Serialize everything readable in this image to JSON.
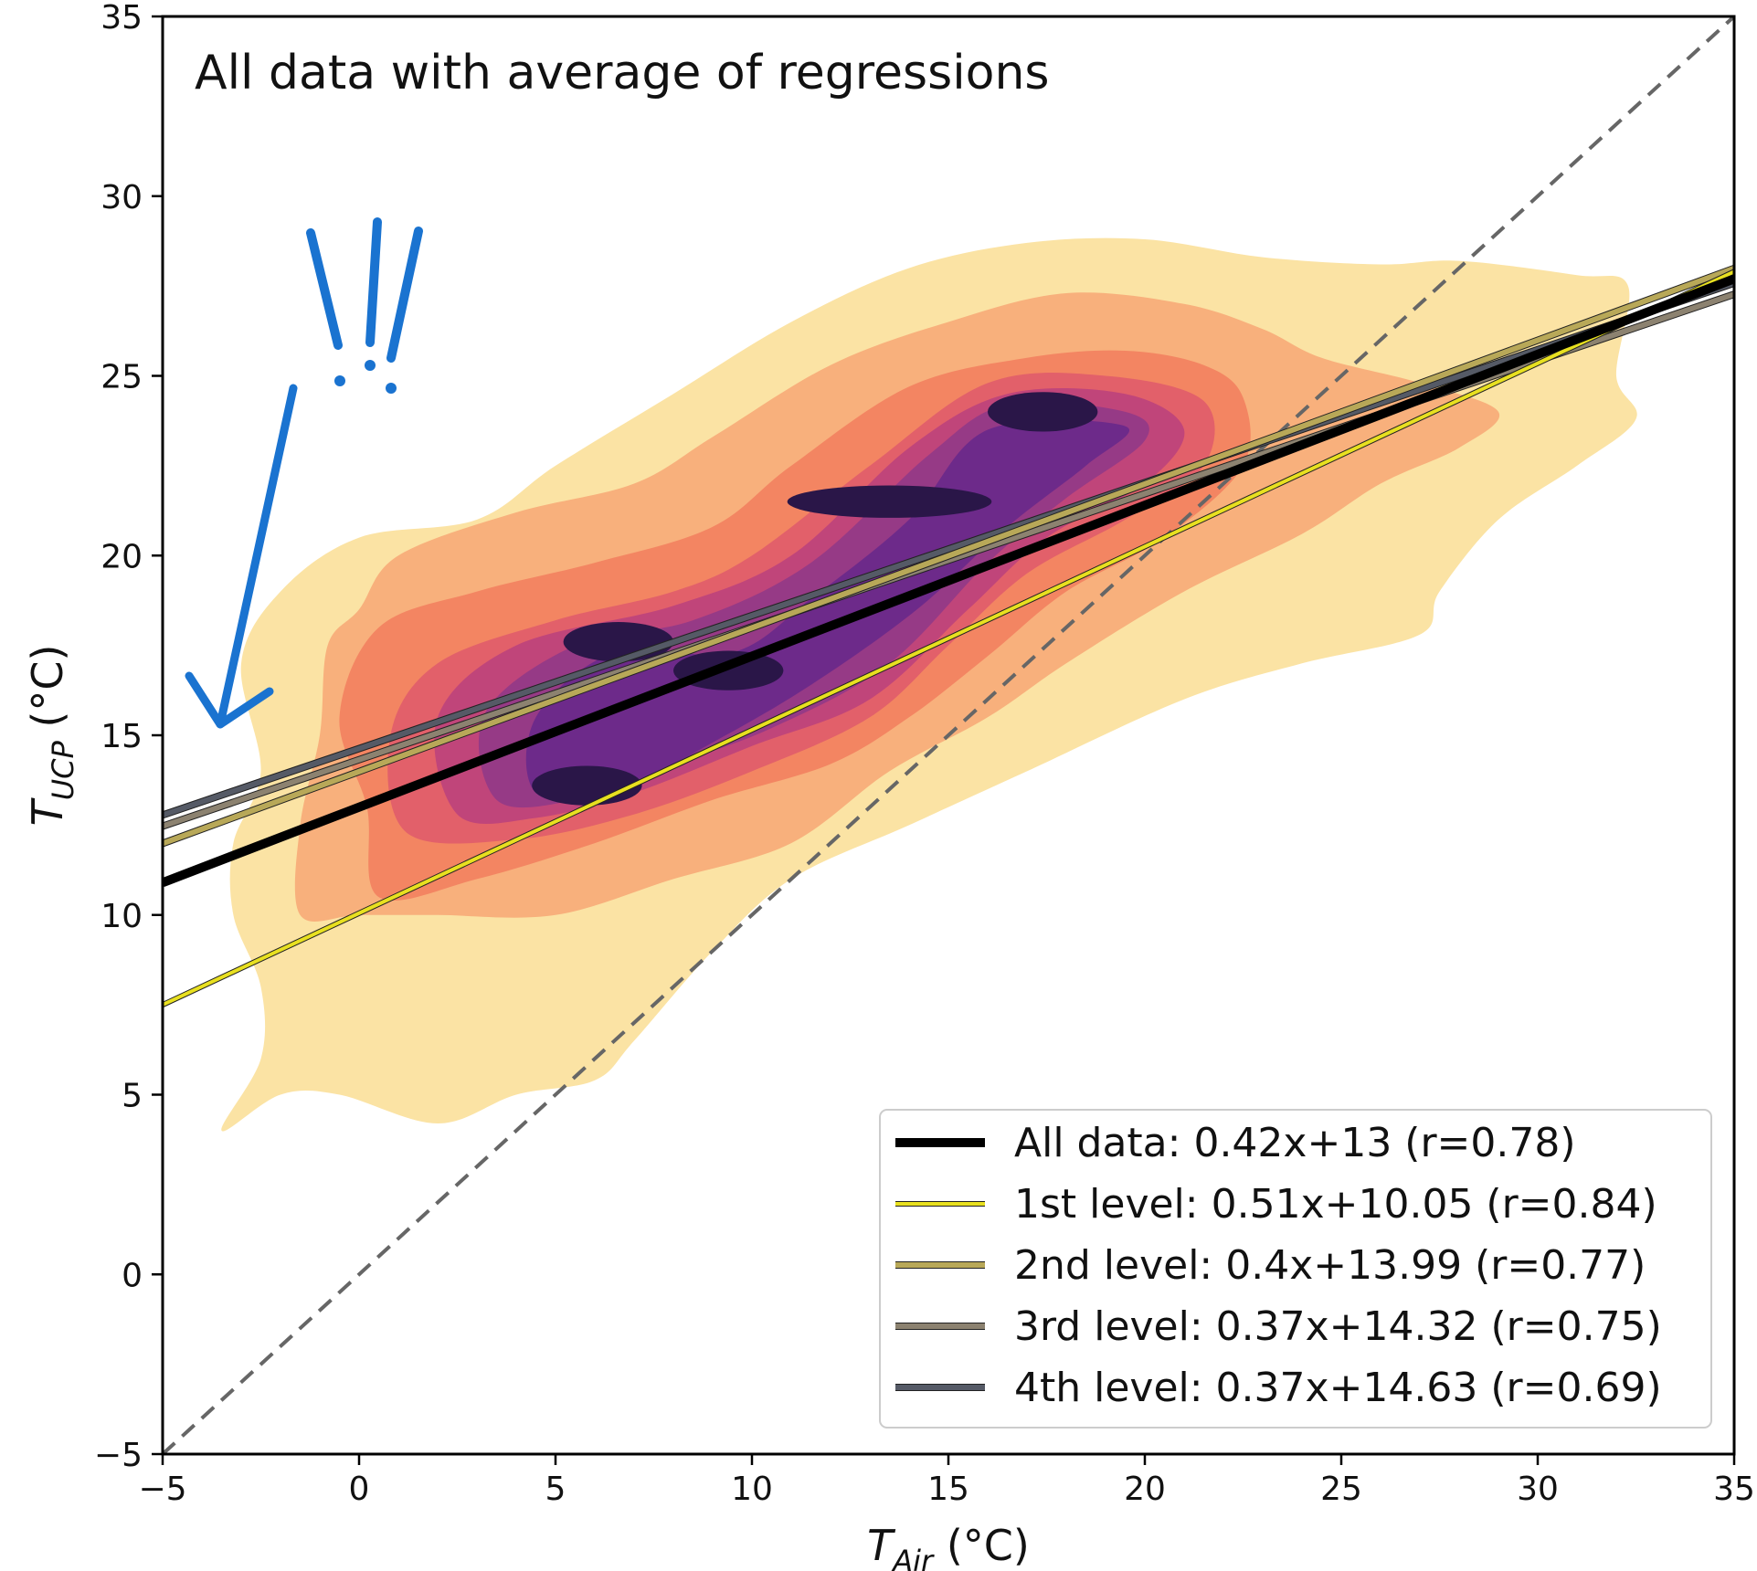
{
  "chart_data": {
    "type": "scatter",
    "title": "All data with average of regressions",
    "xlabel": {
      "symbol": "T",
      "subscript": "Air",
      "unit": " (°C)"
    },
    "ylabel": {
      "symbol": "T",
      "subscript": "UCP",
      "unit": " (°C)"
    },
    "xlim": [
      -5,
      35
    ],
    "ylim": [
      -5,
      35
    ],
    "xticks": [
      -5,
      0,
      5,
      10,
      15,
      20,
      25,
      30,
      35
    ],
    "yticks": [
      -5,
      0,
      5,
      10,
      15,
      20,
      25,
      30,
      35
    ],
    "grid": false,
    "legend_position": "bottom-right",
    "identity_line": {
      "slope": 1,
      "intercept": 0,
      "color": "#666666",
      "style": "dashed"
    },
    "regressions": [
      {
        "name": "All data: 0.42x+13 (r=0.78)",
        "slope": 0.42,
        "intercept": 13,
        "r": 0.78,
        "color": "#000000"
      },
      {
        "name": "1st level: 0.51x+10.05 (r=0.84)",
        "slope": 0.51,
        "intercept": 10.05,
        "r": 0.84,
        "color": "#e8e020"
      },
      {
        "name": "2nd level: 0.4x+13.99 (r=0.77)",
        "slope": 0.4,
        "intercept": 13.99,
        "r": 0.77,
        "color": "#b8a858"
      },
      {
        "name": "3rd level: 0.37x+14.32 (r=0.75)",
        "slope": 0.37,
        "intercept": 14.32,
        "r": 0.75,
        "color": "#8c8270"
      },
      {
        "name": "4th level: 0.37x+14.63 (r=0.69)",
        "slope": 0.37,
        "intercept": 14.63,
        "r": 0.69,
        "color": "#555a66"
      }
    ],
    "density_colormap": [
      "#fbe3a4",
      "#f8b07c",
      "#f38562",
      "#e2606a",
      "#c0457a",
      "#963a86",
      "#6d2a8a",
      "#2a1648"
    ],
    "density_levels": [
      {
        "level": 1,
        "polygon": [
          [
            -3.5,
            4
          ],
          [
            -2.5,
            6
          ],
          [
            -2.5,
            8
          ],
          [
            -3.2,
            10
          ],
          [
            -3.2,
            12
          ],
          [
            -2.5,
            14
          ],
          [
            -3,
            17
          ],
          [
            -2,
            19
          ],
          [
            0,
            20.5
          ],
          [
            3,
            21
          ],
          [
            5,
            22.5
          ],
          [
            8,
            24.5
          ],
          [
            11,
            26.5
          ],
          [
            14,
            28
          ],
          [
            17,
            28.7
          ],
          [
            20,
            28.8
          ],
          [
            23,
            28.3
          ],
          [
            26,
            28.1
          ],
          [
            28,
            28.2
          ],
          [
            31,
            27.8
          ],
          [
            32.3,
            27.5
          ],
          [
            32,
            25
          ],
          [
            32.5,
            23.8
          ],
          [
            31,
            22.5
          ],
          [
            29,
            21
          ],
          [
            27.5,
            19
          ],
          [
            27,
            17.8
          ],
          [
            24,
            17
          ],
          [
            21,
            16
          ],
          [
            17,
            14
          ],
          [
            14,
            12.5
          ],
          [
            11,
            11
          ],
          [
            9,
            9
          ],
          [
            7,
            6.5
          ],
          [
            6,
            5.4
          ],
          [
            4,
            5
          ],
          [
            2,
            4.2
          ],
          [
            -0.5,
            5
          ],
          [
            -2,
            5
          ]
        ]
      },
      {
        "level": 2,
        "polygon": [
          [
            -1.5,
            10
          ],
          [
            -1.5,
            12.5
          ],
          [
            -1,
            15
          ],
          [
            -0.8,
            17.5
          ],
          [
            0,
            18.5
          ],
          [
            1,
            20
          ],
          [
            4,
            21.2
          ],
          [
            7,
            22
          ],
          [
            9,
            23.3
          ],
          [
            12,
            25.3
          ],
          [
            15,
            26.5
          ],
          [
            18,
            27.3
          ],
          [
            21,
            27
          ],
          [
            23,
            26.3
          ],
          [
            24.5,
            25.5
          ],
          [
            27,
            24.8
          ],
          [
            29,
            24
          ],
          [
            28,
            23
          ],
          [
            26,
            22
          ],
          [
            24,
            20.6
          ],
          [
            21,
            19
          ],
          [
            18,
            17
          ],
          [
            16,
            15.5
          ],
          [
            13.5,
            14
          ],
          [
            11,
            12
          ],
          [
            8,
            11
          ],
          [
            5,
            10
          ],
          [
            2,
            10
          ],
          [
            0,
            10
          ]
        ]
      },
      {
        "level": 3,
        "polygon": [
          [
            0.5,
            10.5
          ],
          [
            0.2,
            13
          ],
          [
            -0.5,
            15.5
          ],
          [
            0.5,
            18
          ],
          [
            3,
            19
          ],
          [
            6,
            19.8
          ],
          [
            9,
            20.8
          ],
          [
            11,
            22.5
          ],
          [
            14,
            24.7
          ],
          [
            17,
            25.5
          ],
          [
            19.5,
            25.7
          ],
          [
            21.5,
            25.3
          ],
          [
            22.5,
            24.4
          ],
          [
            22.5,
            22.5
          ],
          [
            20.5,
            20.5
          ],
          [
            18,
            19
          ],
          [
            16,
            17.2
          ],
          [
            14,
            15.5
          ],
          [
            12,
            14.2
          ],
          [
            9,
            13.2
          ],
          [
            6,
            12
          ],
          [
            3,
            11
          ]
        ]
      },
      {
        "level": 4,
        "polygon": [
          [
            1.2,
            12.3
          ],
          [
            0.8,
            15
          ],
          [
            2,
            17
          ],
          [
            5,
            18.2
          ],
          [
            8,
            19
          ],
          [
            10,
            20
          ],
          [
            13,
            22.5
          ],
          [
            16,
            24.8
          ],
          [
            19,
            25
          ],
          [
            21.5,
            24.3
          ],
          [
            21.5,
            22.5
          ],
          [
            19.5,
            21
          ],
          [
            17,
            19.5
          ],
          [
            15,
            17.5
          ],
          [
            13,
            15.5
          ],
          [
            10,
            14
          ],
          [
            7,
            12.8
          ],
          [
            4,
            12.1
          ]
        ]
      },
      {
        "level": 5,
        "polygon": [
          [
            2.5,
            12.8
          ],
          [
            2,
            15.5
          ],
          [
            4,
            17.5
          ],
          [
            8,
            18.6
          ],
          [
            11,
            20
          ],
          [
            14,
            23
          ],
          [
            16.5,
            24.5
          ],
          [
            19.5,
            24.5
          ],
          [
            21,
            23.5
          ],
          [
            20,
            22
          ],
          [
            17.5,
            20.5
          ],
          [
            15.5,
            18.5
          ],
          [
            13,
            16
          ],
          [
            10,
            14.7
          ],
          [
            7,
            13.4
          ],
          [
            4.5,
            12.7
          ]
        ]
      },
      {
        "level": 6,
        "polygon": [
          [
            3.5,
            13.2
          ],
          [
            3.2,
            15.6
          ],
          [
            5.5,
            17.5
          ],
          [
            8.5,
            18.2
          ],
          [
            11.5,
            19.8
          ],
          [
            14.5,
            22.8
          ],
          [
            16.5,
            24.2
          ],
          [
            19.5,
            24
          ],
          [
            20,
            23.2
          ],
          [
            18,
            21.6
          ],
          [
            16,
            19.8
          ],
          [
            13.5,
            17
          ],
          [
            10.5,
            15.2
          ],
          [
            7.5,
            14
          ],
          [
            5.5,
            13.2
          ]
        ]
      },
      {
        "level": 7,
        "polygon": [
          [
            4.5,
            13.4
          ],
          [
            4.5,
            15.5
          ],
          [
            6.5,
            17.3
          ],
          [
            9.5,
            17.3
          ],
          [
            11.5,
            18.8
          ],
          [
            14,
            21
          ],
          [
            16,
            23.5
          ],
          [
            19.5,
            23.6
          ],
          [
            18.5,
            22.5
          ],
          [
            16.5,
            20.8
          ],
          [
            14.2,
            18.5
          ],
          [
            11.5,
            16.4
          ],
          [
            9,
            14.8
          ],
          [
            6.5,
            13.4
          ]
        ]
      }
    ],
    "density_peaks": [
      {
        "x": 5.8,
        "y": 13.6
      },
      {
        "x": 9.4,
        "y": 16.8
      },
      {
        "x": 6.6,
        "y": 17.6
      },
      {
        "x": 13.5,
        "y": 21.5
      },
      {
        "x": 17.4,
        "y": 24.0
      }
    ]
  },
  "annotation": {
    "mark": "!!!",
    "color": "#1a73d0"
  }
}
